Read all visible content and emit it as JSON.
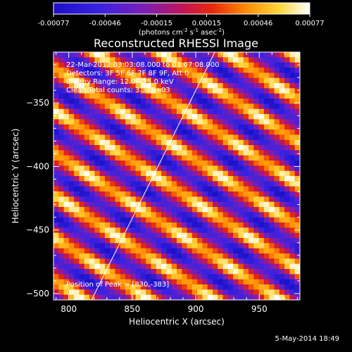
{
  "chart_data": {
    "type": "heatmap",
    "title": "Reconstructed RHESSI Image",
    "xlabel": "Heliocentric X (arcsec)",
    "ylabel": "Heliocentric Y (arcsec)",
    "xlim": [
      788,
      982
    ],
    "ylim": [
      -505,
      -310
    ],
    "xticks": [
      800,
      850,
      900,
      950
    ],
    "yticks": [
      -350,
      -400,
      -450,
      -500
    ],
    "colorbar": {
      "min": -0.00077,
      "max": 0.00077,
      "tick_values": [
        -0.00077,
        -0.00046,
        -0.00015,
        0.00015,
        0.00046,
        0.00077
      ],
      "tick_labels": [
        "-0.00077",
        "-0.00046",
        "-0.00015",
        "0.00015",
        "0.00046",
        "0.00077"
      ],
      "units_prefix": "(photons cm",
      "units_exp1": "-2",
      "units_mid": " s",
      "units_exp2": "-1",
      "units_mid2": " asec",
      "units_exp3": "-2",
      "units_suffix": ")"
    },
    "annotations": [
      "22-Mar-2012 03:03:08.000 to 03:07:08.000",
      "Detectors: 3F 5F 6F 7F 8F 9F, Att 0",
      "Energy Range: 12.0 - 25.0 keV",
      "Clean    Total counts: 3.32E+03"
    ],
    "peak_label": "Position of Peak = [830,-383]",
    "peak": [
      830,
      -383
    ],
    "limb_line": {
      "x": [
        818,
        915
      ],
      "y": [
        -505,
        -310
      ]
    },
    "fringes": {
      "angle_deg": -33,
      "period_arcsec": 28,
      "max_value": 0.00077,
      "min_value": -0.00077
    }
  },
  "footer": {
    "date": "5-May-2014 18:49"
  }
}
